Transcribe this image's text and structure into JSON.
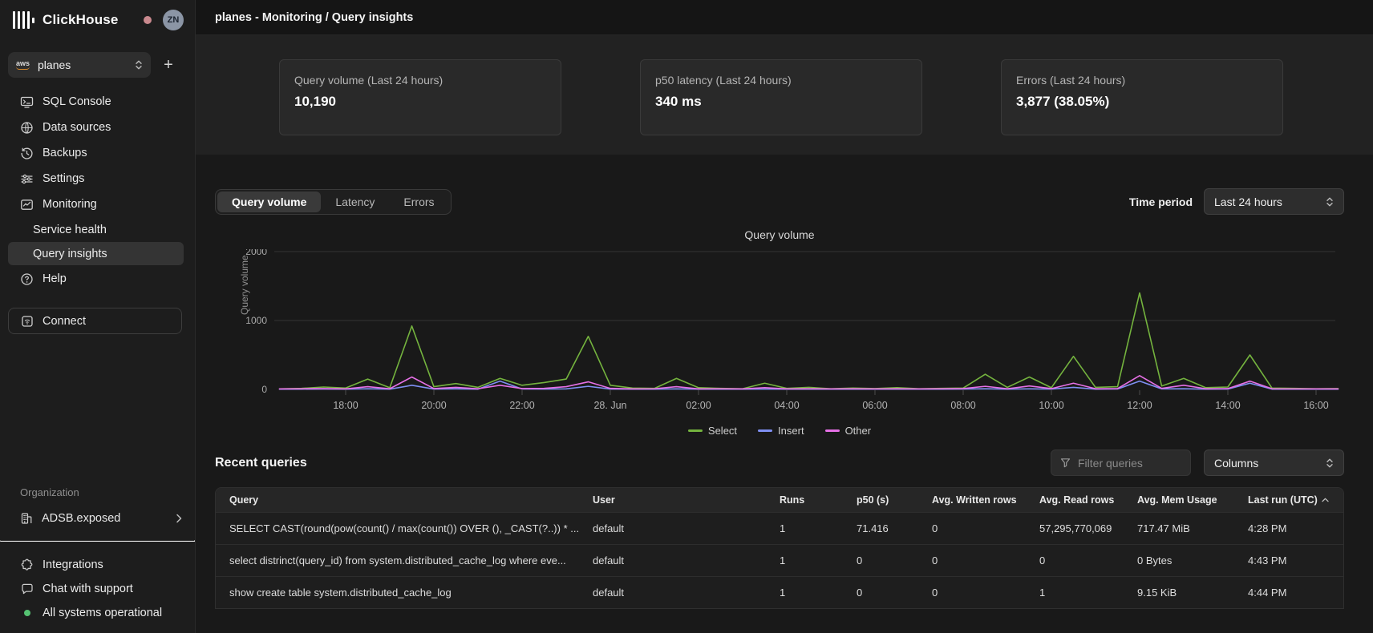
{
  "brand": {
    "name": "ClickHouse",
    "avatar_initials": "ZN"
  },
  "sidebar": {
    "service_selector": {
      "value": "planes",
      "provider": "aws"
    },
    "items": [
      {
        "label": "SQL Console"
      },
      {
        "label": "Data sources"
      },
      {
        "label": "Backups"
      },
      {
        "label": "Settings"
      },
      {
        "label": "Monitoring"
      }
    ],
    "sub_items": [
      {
        "label": "Service health"
      },
      {
        "label": "Query insights"
      }
    ],
    "help_label": "Help",
    "connect_label": "Connect",
    "organization_label": "Organization",
    "organization_name": "ADSB.exposed",
    "footer_items": [
      {
        "label": "Integrations"
      },
      {
        "label": "Chat with support"
      },
      {
        "label": "All systems operational"
      }
    ]
  },
  "header": {
    "title": "planes - Monitoring / Query insights"
  },
  "stats": [
    {
      "label": "Query volume (Last 24 hours)",
      "value": "10,190"
    },
    {
      "label": "p50 latency (Last 24 hours)",
      "value": "340 ms"
    },
    {
      "label": "Errors (Last 24 hours)",
      "value": "3,877 (38.05%)"
    }
  ],
  "tabs": {
    "items": [
      "Query volume",
      "Latency",
      "Errors"
    ],
    "active": "Query volume"
  },
  "time_period": {
    "label": "Time period",
    "value": "Last 24 hours"
  },
  "chart_data": {
    "type": "line",
    "title": "Query volume",
    "ylabel": "Query volume",
    "ylim": [
      0,
      2000
    ],
    "y_ticks": [
      0,
      1000,
      2000
    ],
    "grid": "horizontal",
    "legend_position": "bottom",
    "x_start_hour": 16.5,
    "x_step_hours": 0.5,
    "x_ticks": [
      {
        "label": "18:00",
        "hour": 18
      },
      {
        "label": "20:00",
        "hour": 20
      },
      {
        "label": "22:00",
        "hour": 22
      },
      {
        "label": "28. Jun",
        "hour": 24
      },
      {
        "label": "02:00",
        "hour": 26
      },
      {
        "label": "04:00",
        "hour": 28
      },
      {
        "label": "06:00",
        "hour": 30
      },
      {
        "label": "08:00",
        "hour": 32
      },
      {
        "label": "10:00",
        "hour": 34
      },
      {
        "label": "12:00",
        "hour": 36
      },
      {
        "label": "14:00",
        "hour": 38
      },
      {
        "label": "16:00",
        "hour": 40
      }
    ],
    "series": [
      {
        "name": "Select",
        "color": "#74b33e",
        "values": [
          8,
          15,
          35,
          20,
          150,
          25,
          920,
          40,
          85,
          30,
          160,
          60,
          100,
          150,
          770,
          60,
          20,
          15,
          160,
          25,
          15,
          10,
          90,
          15,
          30,
          10,
          20,
          12,
          25,
          10,
          15,
          20,
          220,
          30,
          180,
          25,
          480,
          30,
          40,
          1400,
          50,
          160,
          25,
          35,
          500,
          20,
          15,
          10,
          12
        ]
      },
      {
        "name": "Insert",
        "color": "#7f8ff2",
        "values": [
          3,
          4,
          5,
          3,
          10,
          4,
          60,
          5,
          8,
          4,
          120,
          6,
          5,
          8,
          45,
          5,
          3,
          4,
          8,
          3,
          4,
          3,
          5,
          3,
          4,
          3,
          4,
          3,
          4,
          3,
          4,
          5,
          10,
          4,
          8,
          5,
          30,
          4,
          6,
          120,
          8,
          10,
          4,
          5,
          90,
          4,
          3,
          3,
          3
        ]
      },
      {
        "name": "Other",
        "color": "#e670e6",
        "values": [
          8,
          10,
          12,
          8,
          40,
          10,
          180,
          12,
          30,
          10,
          60,
          12,
          15,
          40,
          110,
          15,
          8,
          10,
          40,
          8,
          10,
          8,
          25,
          8,
          10,
          8,
          10,
          8,
          10,
          8,
          10,
          12,
          45,
          10,
          50,
          12,
          90,
          10,
          12,
          200,
          15,
          60,
          10,
          12,
          120,
          10,
          8,
          8,
          8
        ]
      }
    ]
  },
  "recent": {
    "title": "Recent queries",
    "filter_placeholder": "Filter queries",
    "columns_button": "Columns",
    "table": {
      "headers": [
        "Query",
        "User",
        "Runs",
        "p50 (s)",
        "Avg. Written rows",
        "Avg. Read rows",
        "Avg. Mem Usage",
        "Last run (UTC)"
      ],
      "sorted_by": "Last run (UTC)",
      "sort_direction": "asc",
      "rows": [
        [
          "SELECT CAST(round(pow(count() / max(count()) OVER (), _CAST(?..)) * ...",
          "default",
          "1",
          "71.416",
          "0",
          "57,295,770,069",
          "717.47 MiB",
          "4:28 PM"
        ],
        [
          "select distrinct(query_id) from system.distributed_cache_log where eve...",
          "default",
          "1",
          "0",
          "0",
          "0",
          "0 Bytes",
          "4:43 PM"
        ],
        [
          "show create table system.distributed_cache_log",
          "default",
          "1",
          "0",
          "0",
          "1",
          "9.15 KiB",
          "4:44 PM"
        ]
      ]
    }
  }
}
